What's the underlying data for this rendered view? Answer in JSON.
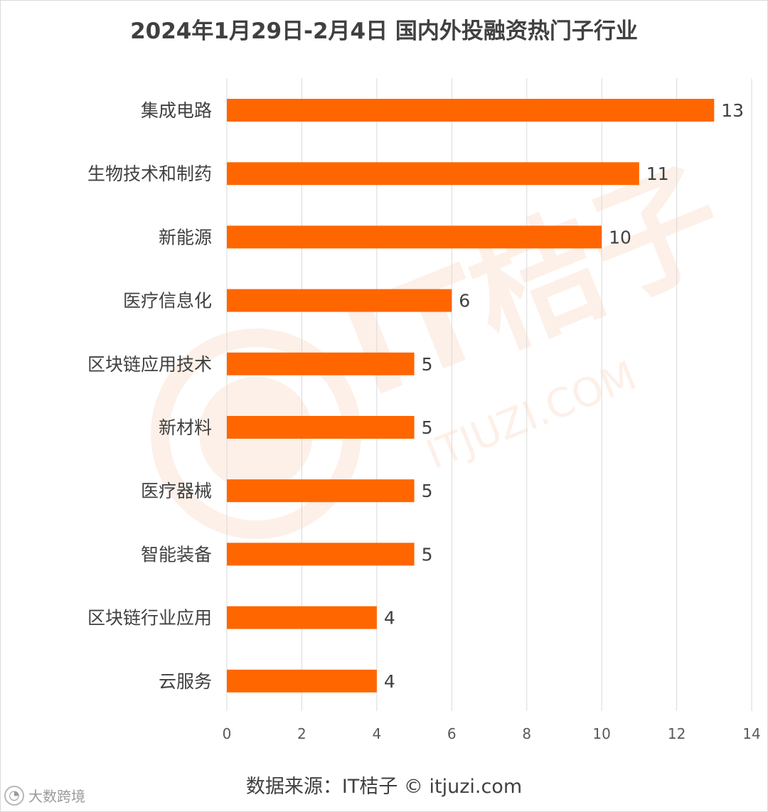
{
  "title": "2024年1月29日-2月4日 国内外投融资热门子行业",
  "source": "数据来源：IT桔子 © itjuzi.com",
  "watermark": {
    "main": "IT桔子",
    "sub": "ITJUZI.COM",
    "corner": "大数跨境"
  },
  "colors": {
    "bar": "#ff6600",
    "grid": "#d9d9d9",
    "text": "#404040",
    "watermark": "#fbe3d6"
  },
  "chart_data": {
    "type": "bar",
    "orientation": "horizontal",
    "title": "2024年1月29日-2月4日 国内外投融资热门子行业",
    "categories": [
      "集成电路",
      "生物技术和制药",
      "新能源",
      "医疗信息化",
      "区块链应用技术",
      "新材料",
      "医疗器械",
      "智能装备",
      "区块链行业应用",
      "云服务"
    ],
    "values": [
      13,
      11,
      10,
      6,
      5,
      5,
      5,
      5,
      4,
      4
    ],
    "xlim": [
      0,
      14
    ],
    "xticks": [
      0,
      2,
      4,
      6,
      8,
      10,
      12,
      14
    ],
    "xlabel": "",
    "ylabel": "",
    "grid": true,
    "data_labels": true
  }
}
